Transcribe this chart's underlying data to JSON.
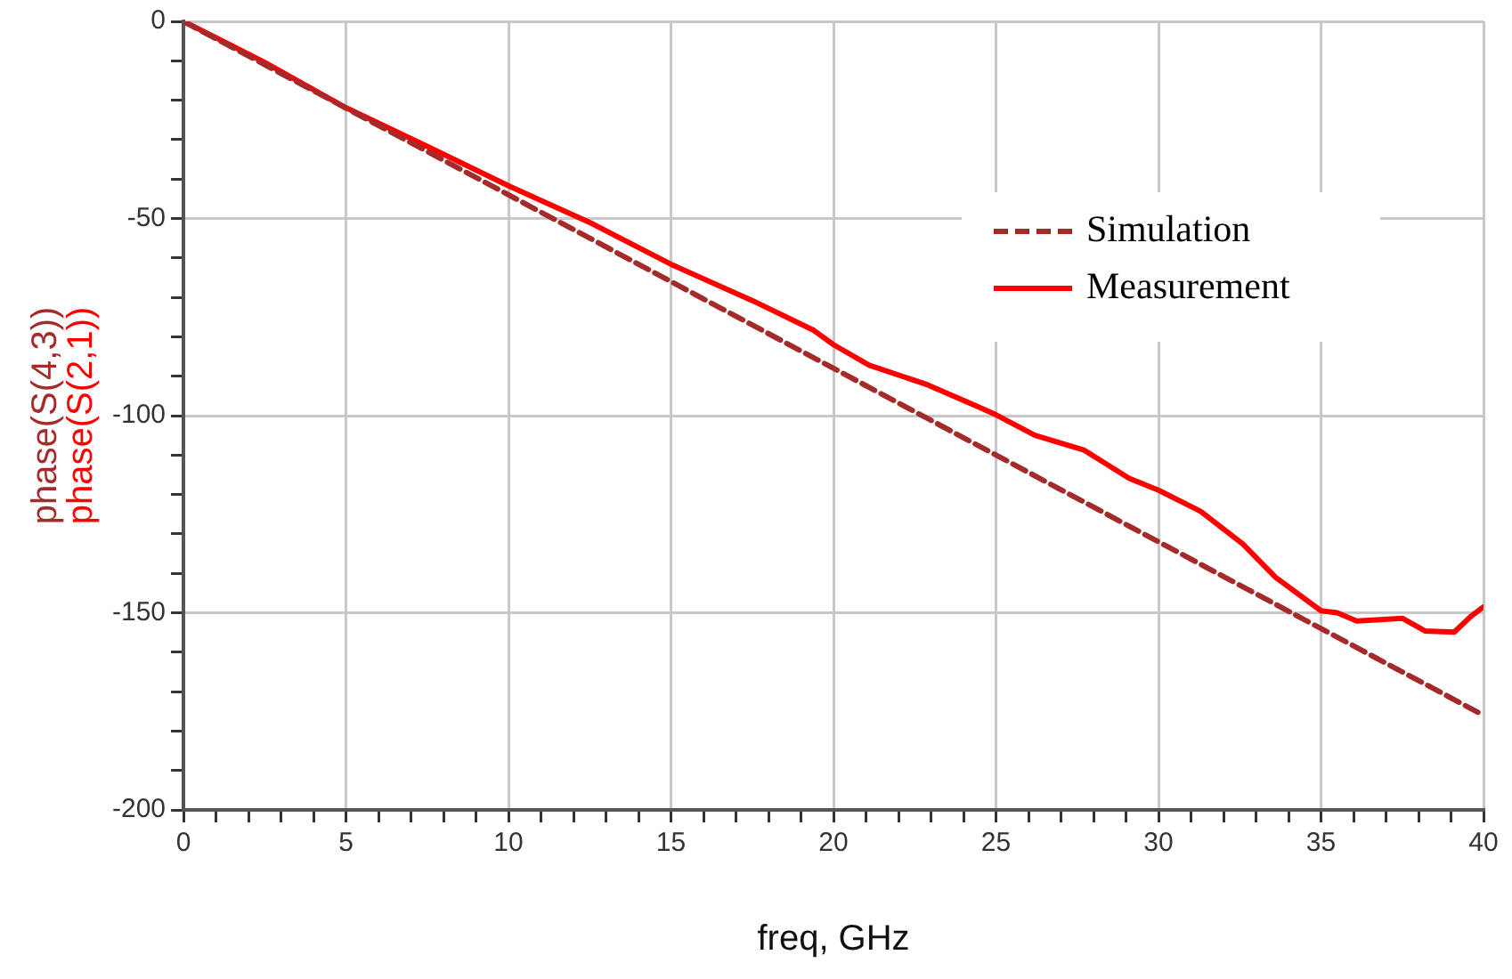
{
  "chart_data": {
    "type": "line",
    "xlabel": "freq, GHz",
    "ylabel": "phase(S(4,3))\nphase(S(2,1))",
    "xlim": [
      0,
      40
    ],
    "ylim": [
      -200,
      0
    ],
    "xticks": [
      0,
      {
        "value": 1,
        "label": null
      },
      {
        "value": 2,
        "label": null
      },
      {
        "value": 3,
        "label": null
      },
      {
        "value": 4,
        "label": null
      },
      5,
      {
        "value": 6,
        "label": null
      },
      {
        "value": 7,
        "label": null
      },
      {
        "value": 8,
        "label": null
      },
      {
        "value": 9,
        "label": null
      },
      10,
      {
        "value": 11,
        "label": null
      },
      {
        "value": 12,
        "label": null
      },
      {
        "value": 13,
        "label": null
      },
      {
        "value": 14,
        "label": null
      },
      15,
      {
        "value": 16,
        "label": null
      },
      {
        "value": 17,
        "label": null
      },
      {
        "value": 18,
        "label": null
      },
      {
        "value": 19,
        "label": null
      },
      20,
      {
        "value": 21,
        "label": null
      },
      {
        "value": 22,
        "label": null
      },
      {
        "value": 23,
        "label": null
      },
      {
        "value": 24,
        "label": null
      },
      25,
      {
        "value": 26,
        "label": null
      },
      {
        "value": 27,
        "label": null
      },
      {
        "value": 28,
        "label": null
      },
      {
        "value": 29,
        "label": null
      },
      30,
      {
        "value": 31,
        "label": null
      },
      {
        "value": 32,
        "label": null
      },
      {
        "value": 33,
        "label": null
      },
      {
        "value": 34,
        "label": null
      },
      35,
      {
        "value": 36,
        "label": null
      },
      {
        "value": 37,
        "label": null
      },
      {
        "value": 38,
        "label": null
      },
      {
        "value": 39,
        "label": null
      },
      40
    ],
    "yticks": [
      -200,
      {
        "value": -190,
        "label": null
      },
      {
        "value": -180,
        "label": null
      },
      {
        "value": -170,
        "label": null
      },
      {
        "value": -160,
        "label": null
      },
      -150,
      {
        "value": -140,
        "label": null
      },
      {
        "value": -130,
        "label": null
      },
      {
        "value": -120,
        "label": null
      },
      {
        "value": -110,
        "label": null
      },
      -100,
      {
        "value": -90,
        "label": null
      },
      {
        "value": -80,
        "label": null
      },
      {
        "value": -70,
        "label": null
      },
      {
        "value": -60,
        "label": null
      },
      -50,
      {
        "value": -40,
        "label": null
      },
      {
        "value": -30,
        "label": null
      },
      {
        "value": -20,
        "label": null
      },
      {
        "value": -10,
        "label": null
      },
      0
    ],
    "grid": true,
    "legend": "top right",
    "marker": "none",
    "series": [
      {
        "name": "Simulation",
        "color": "#a52a2a",
        "line_style": "dashed",
        "x": [
          0,
          40
        ],
        "values": [
          0,
          -176
        ]
      },
      {
        "name": "Measurement",
        "color": "#ff0000",
        "line_style": "solid",
        "x": [
          0,
          2.5,
          5,
          7.5,
          10,
          12.5,
          15,
          17.5,
          19.4,
          20,
          21.1,
          22.9,
          24.4,
          25,
          26.2,
          27.7,
          29.1,
          30,
          31.3,
          32.6,
          33.6,
          35,
          35.5,
          36.1,
          37.5,
          38.2,
          39.1,
          39.6,
          40
        ],
        "values": [
          0,
          -10.4,
          -21.9,
          -31.7,
          -41.7,
          -51,
          -61.6,
          -70.8,
          -78.4,
          -82,
          -87.2,
          -92.2,
          -97.6,
          -99.8,
          -105,
          -108.7,
          -115.9,
          -118.9,
          -124.3,
          -132.6,
          -141,
          -149.5,
          -150,
          -152.1,
          -151.4,
          -154.6,
          -154.9,
          -151,
          -148.5
        ]
      }
    ]
  }
}
